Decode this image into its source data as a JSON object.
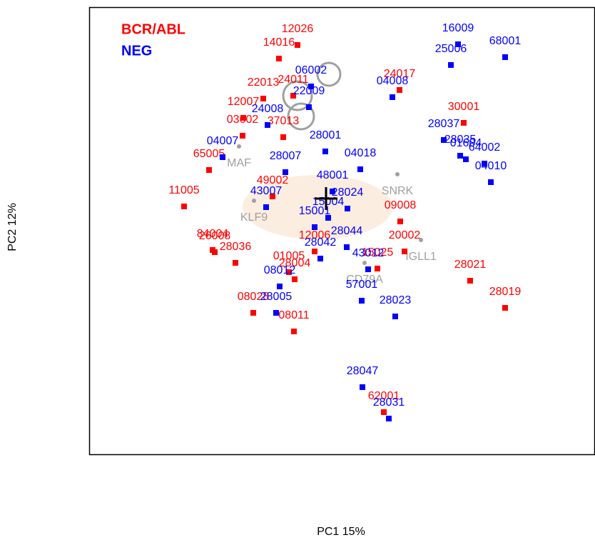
{
  "chart_data": {
    "type": "scatter",
    "x_label": "PC1 15%",
    "y_label": "PC2 12%",
    "xlim": [
      0,
      709
    ],
    "ylim": [
      0,
      626
    ],
    "series": [
      {
        "name": "BCR/ABL",
        "color": "#ff0000",
        "labels": [
          "12026",
          "14016",
          "22013",
          "12007",
          "24011",
          "24017",
          "30001",
          "03602",
          "37013",
          "65005",
          "11005",
          "84004",
          "26008",
          "28036",
          "01005",
          "28004",
          "12006",
          "09008",
          "20002",
          "15025",
          "28021",
          "28019",
          "08028",
          "08011",
          "62001",
          "49002"
        ],
        "x": [
          292,
          266,
          244,
          216,
          286,
          435,
          525,
          215,
          272,
          168,
          133,
          173,
          176,
          205,
          280,
          288,
          316,
          436,
          442,
          404,
          534,
          583,
          230,
          287,
          413,
          257
        ],
        "values": [
          573,
          554,
          498,
          471,
          502,
          510,
          464,
          446,
          444,
          398,
          347,
          286,
          283,
          268,
          255,
          245,
          284,
          326,
          284,
          260,
          243,
          205,
          198,
          172,
          59,
          361
        ]
      },
      {
        "name": "NEG",
        "color": "#0000ff",
        "labels": [
          "16009",
          "68001",
          "25006",
          "06002",
          "22009",
          "04008",
          "24008",
          "28037",
          "28035",
          "01604",
          "64002",
          "04010",
          "28001",
          "04018",
          "48001",
          "28024",
          "15004",
          "15001",
          "28044",
          "28042",
          "43012",
          "57001",
          "28023",
          "08012",
          "28005",
          "28047",
          "28031",
          "04007",
          "28007",
          "43007"
        ],
        "x": [
          517,
          583,
          507,
          311,
          308,
          425,
          250,
          497,
          520,
          528,
          554,
          563,
          331,
          380,
          341,
          362,
          335,
          316,
          361,
          324,
          391,
          382,
          429,
          267,
          262,
          383,
          420,
          187,
          275,
          248
        ],
        "values": [
          574,
          556,
          545,
          515,
          486,
          500,
          461,
          440,
          418,
          413,
          407,
          381,
          424,
          399,
          368,
          344,
          331,
          318,
          290,
          274,
          259,
          215,
          193,
          235,
          198,
          94,
          50,
          416,
          395,
          346
        ]
      }
    ],
    "loadings": {
      "color": "#a0a0a0",
      "labels": [
        "SNRK",
        "IGLL1",
        "KLF9",
        "CD79A",
        "MAF"
      ],
      "x": [
        432,
        465,
        231,
        386,
        210
      ],
      "values": [
        392,
        300,
        355,
        268,
        431
      ]
    }
  }
}
